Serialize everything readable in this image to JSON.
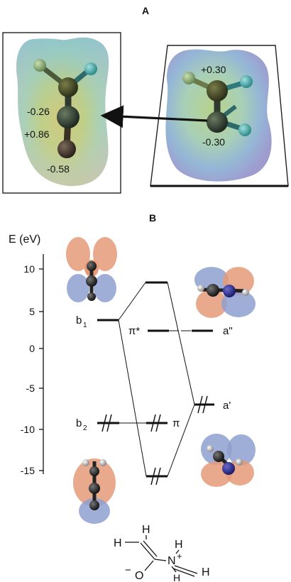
{
  "panel_a": {
    "label": "A",
    "left_charges": [
      "-0.26",
      "+0.86",
      "-0.58"
    ],
    "right_charges": [
      "+0.30",
      "-0.30"
    ]
  },
  "panel_b": {
    "label": "B",
    "axis_label": "E (eV)",
    "ticks": [
      "10",
      "5",
      "0",
      "-5",
      "-10",
      "-15"
    ],
    "levels": {
      "b1": "b",
      "b1_sub": "1",
      "b2": "b",
      "b2_sub": "2",
      "pi_star": "π*",
      "pi": "π",
      "a_double_prime": "a\"",
      "a_prime": "a'"
    },
    "structure": {
      "h_top": "H",
      "h_left": "H",
      "h_n": "H",
      "n": "N",
      "plus": "+",
      "o": "O",
      "minus": "−",
      "h_right": "H",
      "h_bottom": "H"
    }
  },
  "colors": {
    "orbital_orange": "#e59a78",
    "orbital_blue": "#8ea0cf",
    "frame": "#222222"
  }
}
